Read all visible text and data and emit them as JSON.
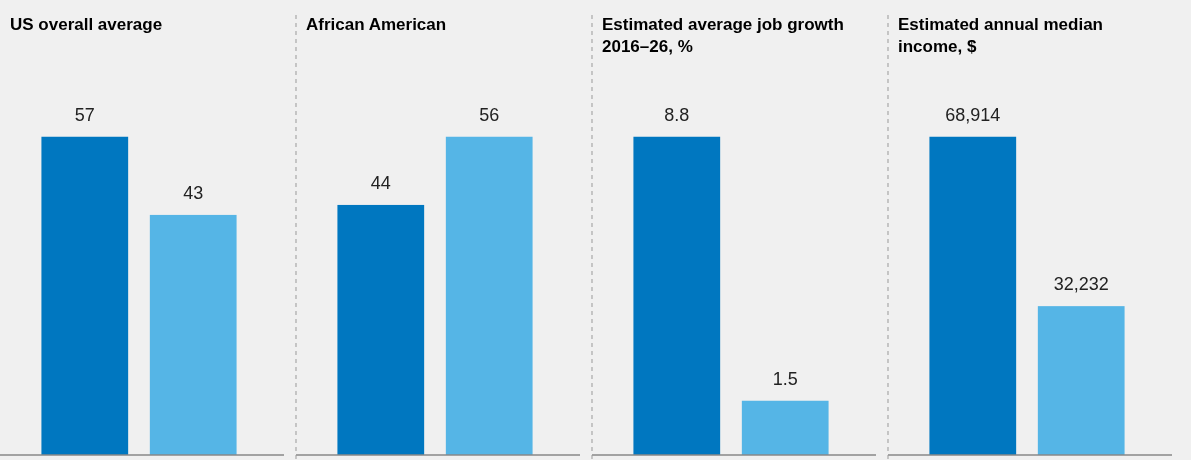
{
  "chart_data": [
    {
      "type": "bar",
      "title": "US overall average",
      "categories": [
        null,
        null
      ],
      "values": [
        57,
        43
      ],
      "colors": [
        "#0077c0",
        "#55b5e6"
      ],
      "data_labels": true
    },
    {
      "type": "bar",
      "title": "African American",
      "categories": [
        null,
        null
      ],
      "values": [
        44,
        56
      ],
      "colors": [
        "#0077c0",
        "#55b5e6"
      ],
      "data_labels": true
    },
    {
      "type": "bar",
      "title": "Estimated average job growth 2016–26, %",
      "categories": [
        null,
        null
      ],
      "values": [
        8.8,
        1.5
      ],
      "colors": [
        "#0077c0",
        "#55b5e6"
      ],
      "data_labels": true
    },
    {
      "type": "bar",
      "title": "Estimated annual median income, $",
      "categories": [
        null,
        null
      ],
      "values": [
        68914,
        32232
      ],
      "colors": [
        "#0077c0",
        "#55b5e6"
      ],
      "value_labels": [
        "68,914",
        "32,232"
      ]
    }
  ]
}
